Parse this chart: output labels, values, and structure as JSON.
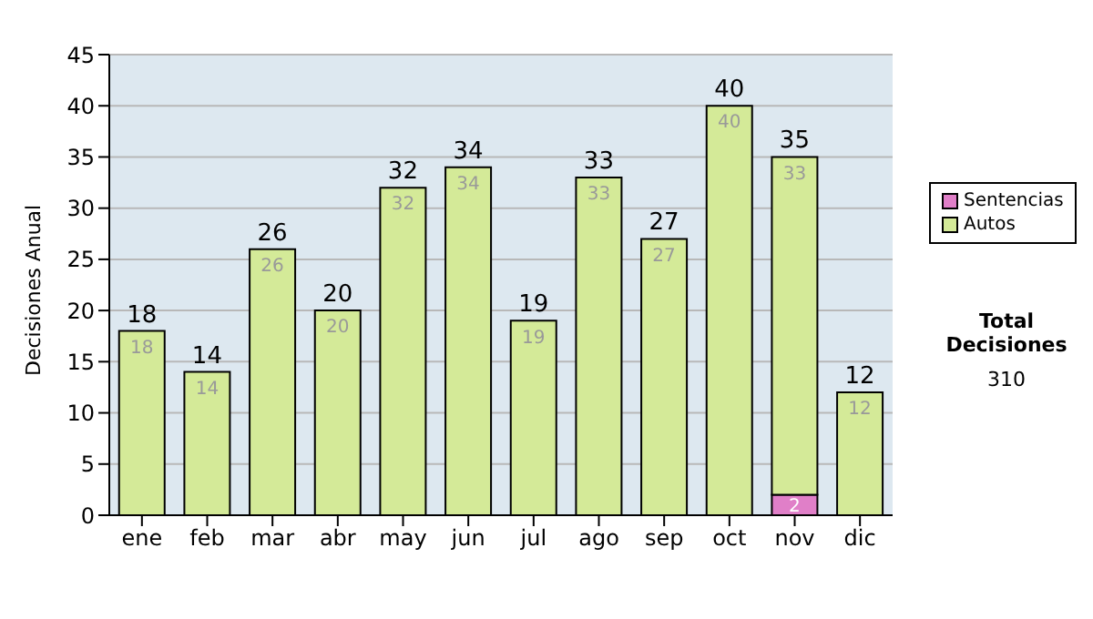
{
  "chart_data": {
    "type": "bar",
    "ylabel": "Decisiones Anual",
    "categories": [
      "ene",
      "feb",
      "mar",
      "abr",
      "may",
      "jun",
      "jul",
      "ago",
      "sep",
      "oct",
      "nov",
      "dic"
    ],
    "series": [
      {
        "name": "Sentencias",
        "color": "#e07fc8",
        "values": [
          null,
          null,
          null,
          null,
          null,
          null,
          null,
          null,
          null,
          null,
          2,
          null
        ],
        "value_labels": [
          null,
          null,
          null,
          null,
          null,
          null,
          null,
          null,
          null,
          null,
          "2",
          null
        ]
      },
      {
        "name": "Autos",
        "color": "#d4ea98",
        "values": [
          18,
          14,
          26,
          20,
          32,
          34,
          19,
          33,
          27,
          40,
          33,
          12
        ],
        "value_labels": [
          "18",
          "14",
          "26",
          "20",
          "32",
          "34",
          "19",
          "33",
          "27",
          "40",
          "33",
          "12"
        ]
      }
    ],
    "stacked": true,
    "totals": [
      "18",
      "14",
      "26",
      "20",
      "32",
      "34",
      "19",
      "33",
      "27",
      "40",
      "35",
      "12"
    ],
    "ylim": [
      0,
      45
    ],
    "yticks": [
      0,
      5,
      10,
      15,
      20,
      25,
      30,
      35,
      40,
      45
    ],
    "grid": "y",
    "legend": "right",
    "annotations": [
      "Total Decisiones",
      "310"
    ]
  }
}
